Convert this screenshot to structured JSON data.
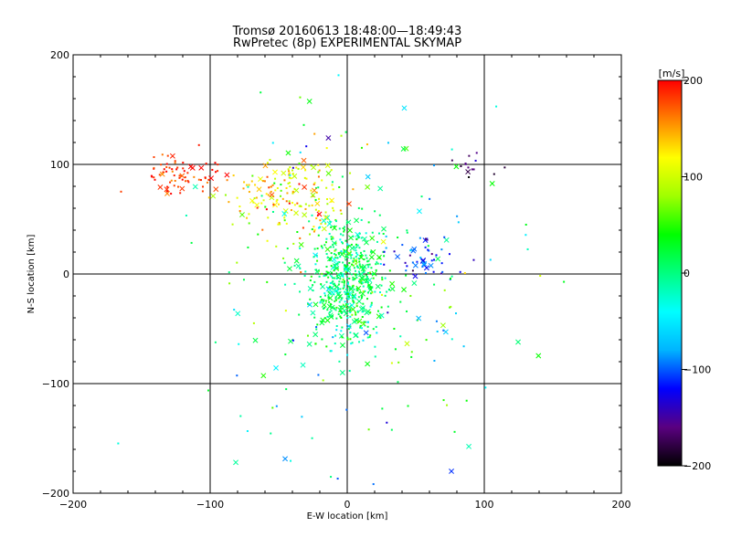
{
  "chart_data": {
    "type": "scatter",
    "title": "Tromsø 20160613 18:48:00—18:49:43",
    "subtitle": "RwPretec (8p) EXPERIMENTAL SKYMAP",
    "xlabel": "E-W location [km]",
    "ylabel": "N-S location [km]",
    "xlim": [
      -200,
      200
    ],
    "ylim": [
      -200,
      200
    ],
    "x_ticks": [
      "−200",
      "−100",
      "0",
      "100",
      "200"
    ],
    "y_ticks": [
      "−200",
      "−100",
      "0",
      "100",
      "200"
    ],
    "grid_lines": [
      -100,
      0,
      100
    ],
    "colorbar": {
      "label": "[m/s]",
      "range": [
        -200,
        200
      ],
      "ticks": [
        "200",
        "100",
        "0",
        "−100",
        "−200"
      ],
      "colors": [
        "#000000",
        "#5a0080",
        "#0000ff",
        "#00b4ff",
        "#00ffff",
        "#00ff80",
        "#00ff00",
        "#a0ff00",
        "#ffff00",
        "#ff8000",
        "#ff0000"
      ]
    },
    "marker_types": [
      "dot",
      "x"
    ],
    "clusters": [
      {
        "region": "center",
        "x_mean": 0,
        "y_mean": -5,
        "x_sd": 14,
        "y_sd": 28,
        "count": 520,
        "velocity_mean": 10,
        "velocity_sd": 25
      },
      {
        "region": "northwest",
        "x_mean": -40,
        "y_mean": 75,
        "x_sd": 22,
        "y_sd": 18,
        "count": 170,
        "velocity_mean": 125,
        "velocity_sd": 35
      },
      {
        "region": "far-northwest",
        "x_mean": -120,
        "y_mean": 92,
        "x_sd": 14,
        "y_sd": 8,
        "count": 75,
        "velocity_mean": 185,
        "velocity_sd": 15
      },
      {
        "region": "east",
        "x_mean": 55,
        "y_mean": 12,
        "x_sd": 12,
        "y_sd": 8,
        "count": 45,
        "velocity_mean": -110,
        "velocity_sd": 25
      },
      {
        "region": "northeast",
        "x_mean": 92,
        "y_mean": 98,
        "x_sd": 6,
        "y_sd": 7,
        "count": 14,
        "velocity_mean": -170,
        "velocity_sd": 20
      },
      {
        "region": "scattered",
        "x_mean": 0,
        "y_mean": 0,
        "x_sd": 55,
        "y_sd": 85,
        "count": 220,
        "velocity_mean": 0,
        "velocity_sd": 60
      }
    ]
  }
}
